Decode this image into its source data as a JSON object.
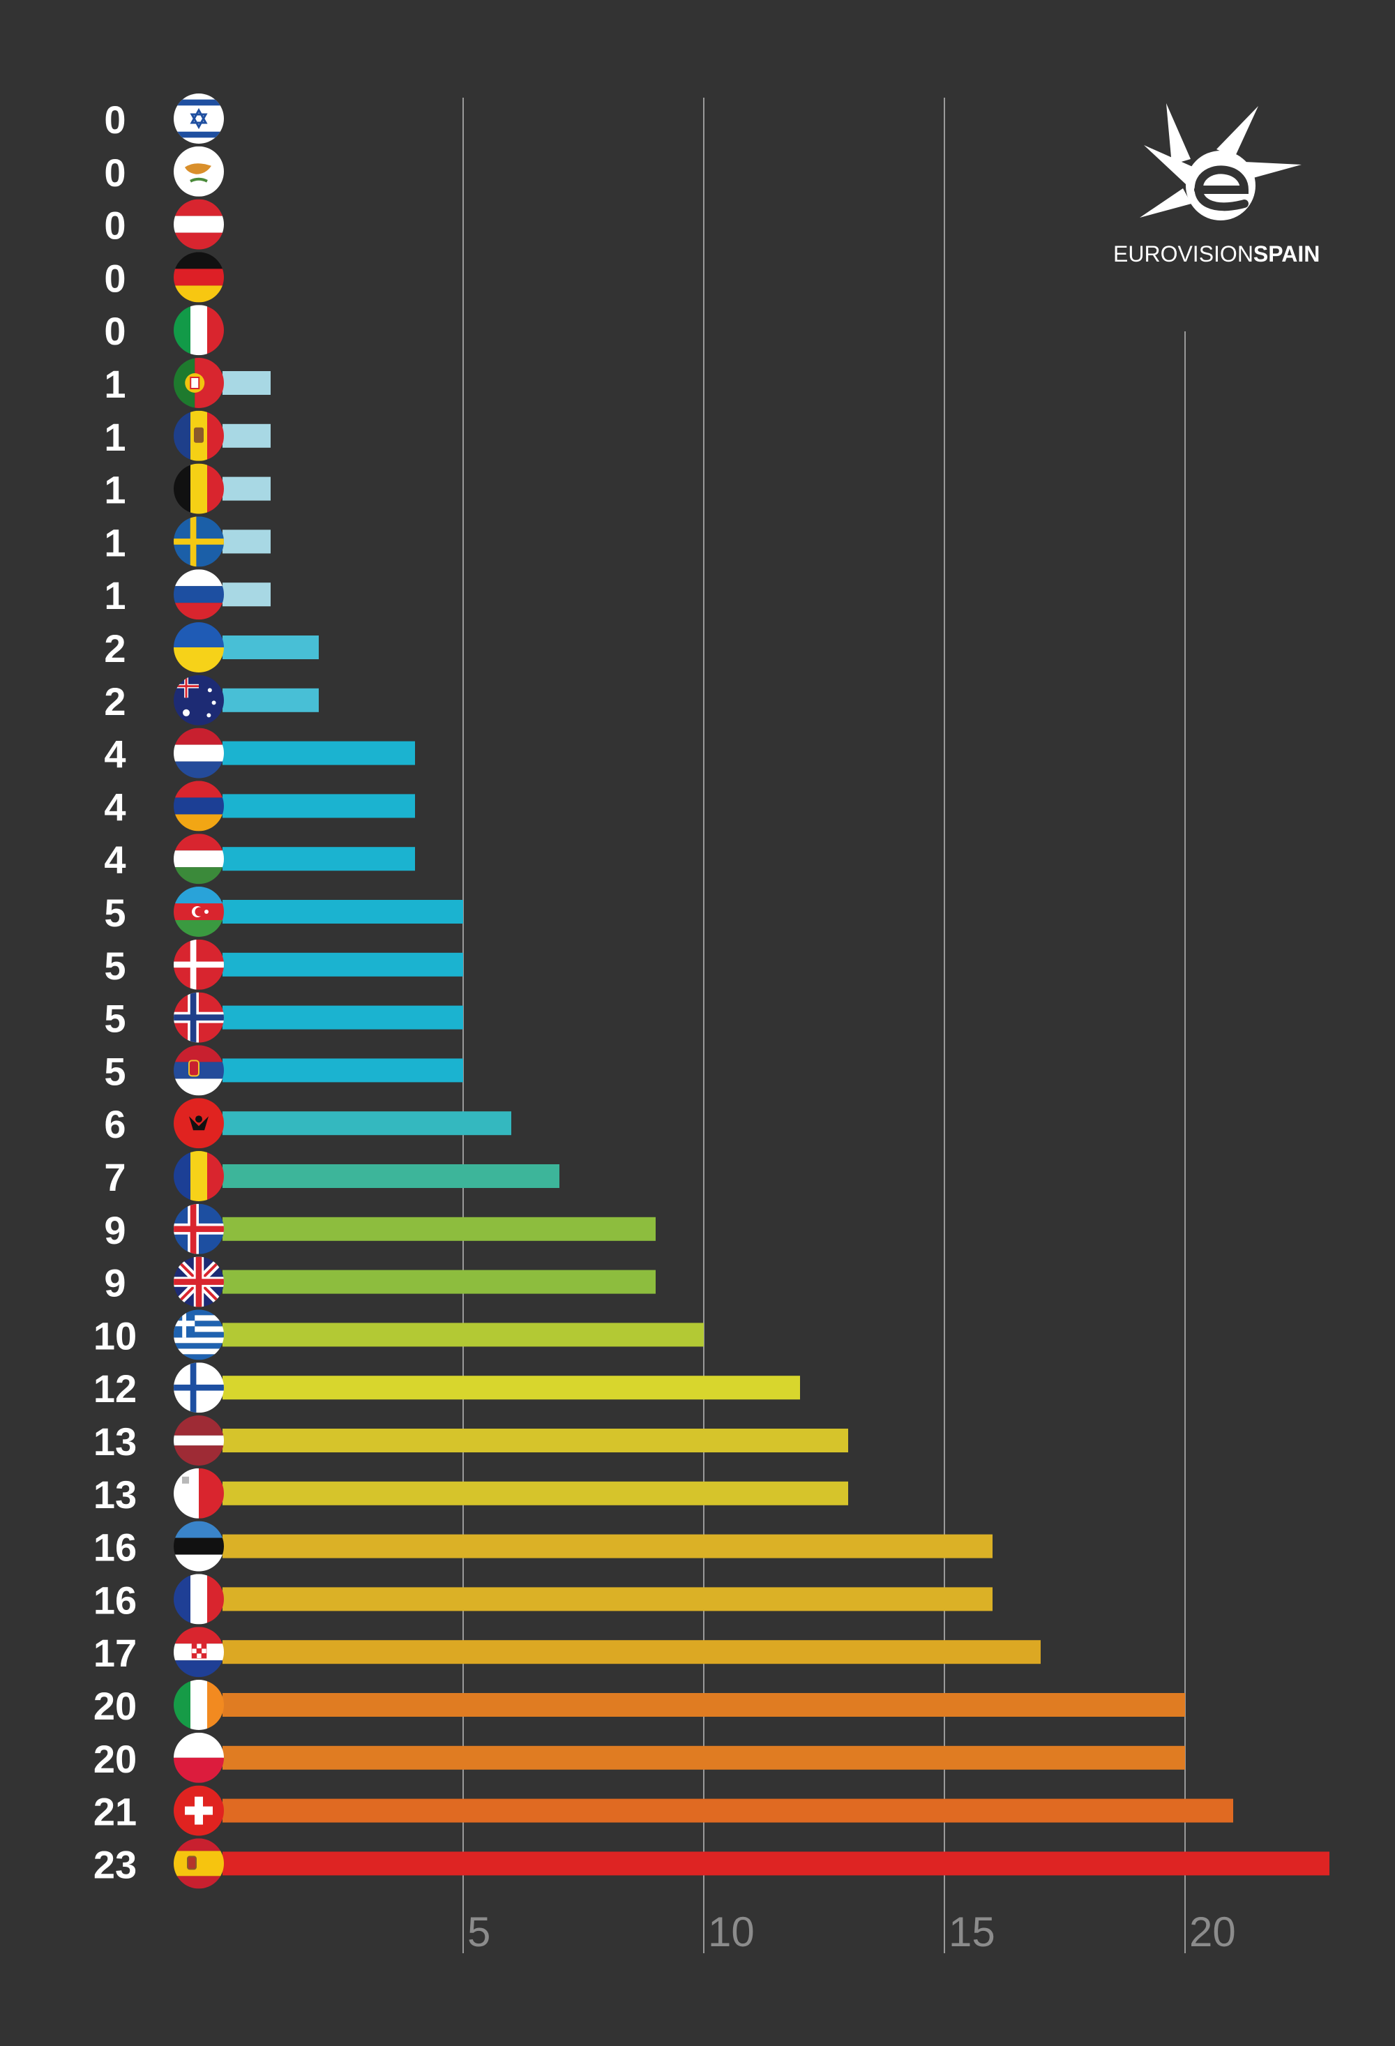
{
  "brand": {
    "name_part1": "EUROVISION",
    "name_part2": "SPAIN",
    "logo_letter": "e"
  },
  "chart_data": {
    "type": "bar",
    "orientation": "horizontal",
    "title": "",
    "xlabel": "",
    "ylabel": "",
    "xlim": [
      0,
      23.4
    ],
    "xticks": [
      5,
      10,
      15,
      20
    ],
    "grid": true,
    "legend": "none",
    "categories": [
      "Israel",
      "Cyprus",
      "Austria",
      "Germany",
      "Italy",
      "Portugal",
      "Moldova",
      "Belgium",
      "Sweden",
      "Russia",
      "Ukraine",
      "Australia",
      "Netherlands",
      "Armenia",
      "Hungary",
      "Azerbaijan",
      "Denmark",
      "Norway",
      "Serbia",
      "Albania",
      "Romania",
      "Iceland",
      "United Kingdom",
      "Greece",
      "Finland",
      "Latvia",
      "Malta",
      "Estonia",
      "France",
      "Croatia",
      "Ireland",
      "Poland",
      "Switzerland",
      "Spain"
    ],
    "flags": [
      "israel-flag",
      "cyprus-flag",
      "austria-flag",
      "germany-flag",
      "italy-flag",
      "portugal-flag",
      "moldova-flag",
      "belgium-flag",
      "sweden-flag",
      "russia-flag",
      "ukraine-flag",
      "australia-flag",
      "netherlands-flag",
      "armenia-flag",
      "hungary-flag",
      "azerbaijan-flag",
      "denmark-flag",
      "norway-flag",
      "serbia-flag",
      "albania-flag",
      "romania-flag",
      "iceland-flag",
      "uk-flag",
      "greece-flag",
      "finland-flag",
      "latvia-flag",
      "malta-flag",
      "estonia-flag",
      "france-flag",
      "croatia-flag",
      "ireland-flag",
      "poland-flag",
      "switzerland-flag",
      "spain-flag"
    ],
    "values": [
      0,
      0,
      0,
      0,
      0,
      1,
      1,
      1,
      1,
      1,
      2,
      2,
      4,
      4,
      4,
      5,
      5,
      5,
      5,
      6,
      7,
      9,
      9,
      10,
      12,
      13,
      13,
      16,
      16,
      17,
      20,
      20,
      21,
      23
    ],
    "value_labels": [
      "0",
      "0",
      "0",
      "0",
      "0",
      "1",
      "1",
      "1",
      "1",
      "1",
      "2",
      "2",
      "4",
      "4",
      "4",
      "5",
      "5",
      "5",
      "5",
      "6",
      "7",
      "9",
      "9",
      "10",
      "12",
      "13",
      "13",
      "16",
      "16",
      "17",
      "20",
      "20",
      "21",
      "23"
    ],
    "bar_colors": [
      "#a8d8e4",
      "#a8d8e4",
      "#a8d8e4",
      "#a8d8e4",
      "#a8d8e4",
      "#a8d8e4",
      "#a8d8e4",
      "#a8d8e4",
      "#a8d8e4",
      "#a8d8e4",
      "#48bfd6",
      "#48bfd6",
      "#1bb3d0",
      "#1bb3d0",
      "#1bb3d0",
      "#1bb3d0",
      "#1bb3d0",
      "#1bb3d0",
      "#1bb3d0",
      "#34b8bf",
      "#3db59a",
      "#8dbd3e",
      "#8dbd3e",
      "#b3c934",
      "#d8d62d",
      "#d6c42b",
      "#d6c42b",
      "#dbb126",
      "#dbb126",
      "#dca823",
      "#e07c22",
      "#e07c22",
      "#e06a22",
      "#de2423"
    ],
    "tick_labels": [
      "5",
      "10",
      "15",
      "20"
    ]
  }
}
